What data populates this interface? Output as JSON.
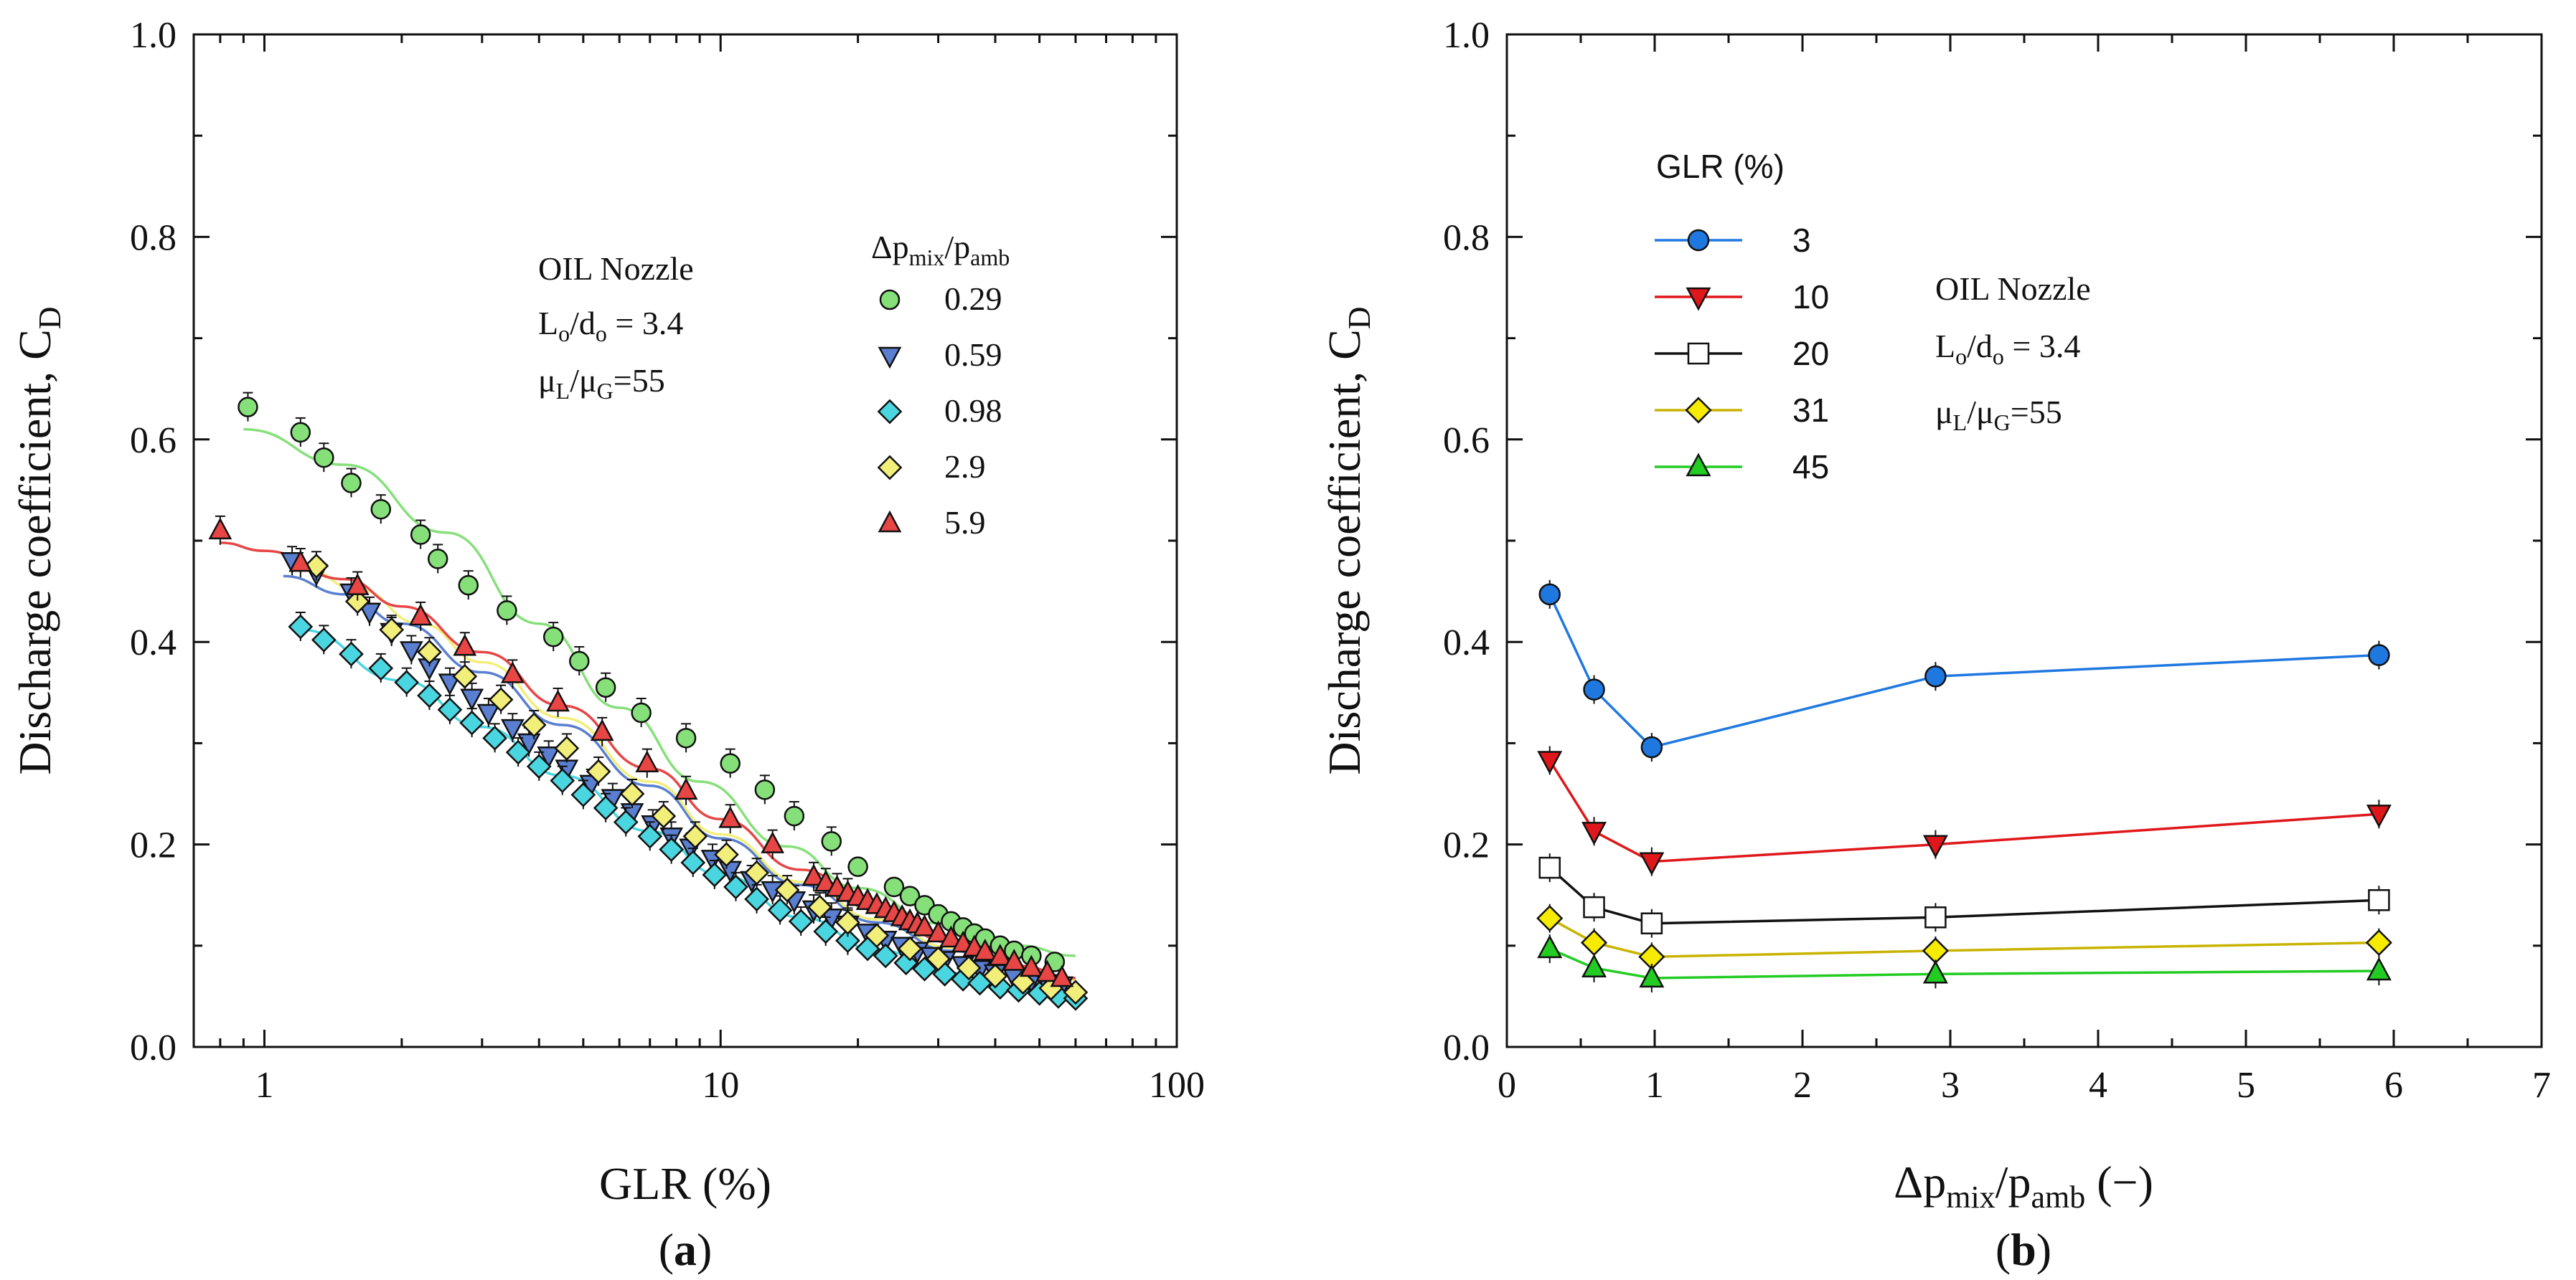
{
  "chart_data": [
    {
      "id": "a",
      "type": "scatter",
      "x_scale": "log",
      "panel_label": "a",
      "xlabel": "GLR (%)",
      "ylabel": "Discharge coefficient, C",
      "ylabel_sub": "D",
      "xlim": [
        0.7,
        100
      ],
      "ylim": [
        0,
        1.0
      ],
      "xticks": [
        1,
        10,
        100
      ],
      "xtick_labels": [
        "1",
        "10",
        "100"
      ],
      "yticks": [
        0,
        0.2,
        0.4,
        0.6,
        0.8,
        1.0
      ],
      "ytick_labels": [
        "0.0",
        "0.2",
        "0.4",
        "0.6",
        "0.8",
        "1.0"
      ],
      "annotation": {
        "line1": "OIL Nozzle",
        "line2_main": "L",
        "line2_sub": "o",
        "line2_mid": "/d",
        "line2_sub2": "o",
        "line2_tail": " = 3.4",
        "line3_main": "μ",
        "line3_sub": "L",
        "line3_mid": "/μ",
        "line3_sub2": "G",
        "line3_tail": "=55"
      },
      "legend": {
        "title_main": "Δp",
        "title_sub": "mix",
        "title_mid": "/p",
        "title_sub2": "amb",
        "placement": "top-right"
      },
      "series": [
        {
          "name": "0.29",
          "color": "#86e07a",
          "marker": "circle",
          "x": [
            0.92,
            1.2,
            1.35,
            1.55,
            1.8,
            2.2,
            2.4,
            2.8,
            3.4,
            4.3,
            4.9,
            5.6,
            6.7,
            8.4,
            10.5,
            12.5,
            14.5,
            17.5,
            20,
            24,
            26,
            28,
            30,
            32,
            34,
            36,
            38,
            41,
            44,
            48,
            54
          ],
          "y": [
            0.632,
            0.607,
            0.582,
            0.557,
            0.531,
            0.506,
            0.482,
            0.456,
            0.431,
            0.405,
            0.381,
            0.355,
            0.33,
            0.305,
            0.28,
            0.254,
            0.228,
            0.203,
            0.178,
            0.158,
            0.149,
            0.14,
            0.131,
            0.124,
            0.118,
            0.112,
            0.107,
            0.1,
            0.095,
            0.09,
            0.084
          ],
          "fit_x": [
            0.9,
            1.5,
            2.5,
            4,
            6,
            9,
            14,
            20,
            30,
            45,
            60
          ],
          "fit_y": [
            0.61,
            0.575,
            0.508,
            0.418,
            0.335,
            0.262,
            0.198,
            0.157,
            0.122,
            0.1,
            0.09
          ]
        },
        {
          "name": "0.59",
          "color": "#5a7fd1",
          "marker": "triangle-down",
          "x": [
            1.15,
            1.3,
            1.55,
            1.7,
            1.9,
            2.1,
            2.3,
            2.55,
            2.85,
            3.1,
            3.5,
            3.8,
            4.2,
            4.6,
            5.2,
            5.8,
            6.4,
            7.1,
            7.8,
            8.6,
            9.6,
            10.5,
            11.7,
            13,
            14.5,
            16,
            17.5,
            19,
            21,
            23,
            25,
            27,
            29,
            31,
            34,
            37,
            40,
            44,
            48,
            52,
            56
          ],
          "y": [
            0.48,
            0.468,
            0.449,
            0.43,
            0.41,
            0.392,
            0.375,
            0.36,
            0.345,
            0.33,
            0.315,
            0.301,
            0.288,
            0.275,
            0.26,
            0.246,
            0.232,
            0.22,
            0.208,
            0.197,
            0.186,
            0.175,
            0.165,
            0.155,
            0.145,
            0.136,
            0.128,
            0.121,
            0.113,
            0.106,
            0.1,
            0.095,
            0.09,
            0.086,
            0.081,
            0.077,
            0.073,
            0.069,
            0.066,
            0.063,
            0.061
          ],
          "fit_x": [
            1.1,
            1.5,
            2,
            3,
            4.5,
            7,
            10,
            15,
            22,
            32,
            45,
            60
          ],
          "fit_y": [
            0.465,
            0.447,
            0.418,
            0.37,
            0.318,
            0.258,
            0.206,
            0.16,
            0.123,
            0.095,
            0.076,
            0.066
          ]
        },
        {
          "name": "0.98",
          "color": "#4ad6e0",
          "marker": "diamond",
          "x": [
            1.2,
            1.35,
            1.55,
            1.8,
            2.05,
            2.3,
            2.55,
            2.85,
            3.2,
            3.6,
            4,
            4.5,
            5,
            5.6,
            6.2,
            7,
            7.8,
            8.7,
            9.7,
            10.8,
            12,
            13.5,
            15,
            17,
            19,
            21,
            23,
            25.5,
            28,
            31,
            34,
            37,
            41,
            45,
            50,
            55,
            60
          ],
          "y": [
            0.415,
            0.402,
            0.388,
            0.374,
            0.36,
            0.347,
            0.333,
            0.32,
            0.305,
            0.291,
            0.277,
            0.263,
            0.249,
            0.236,
            0.222,
            0.208,
            0.195,
            0.182,
            0.17,
            0.158,
            0.146,
            0.135,
            0.124,
            0.114,
            0.105,
            0.097,
            0.09,
            0.083,
            0.077,
            0.072,
            0.067,
            0.063,
            0.059,
            0.056,
            0.053,
            0.05,
            0.048
          ],
          "fit_x": [
            1.2,
            2,
            3,
            4.5,
            7,
            10,
            15,
            22,
            32,
            45,
            60
          ],
          "fit_y": [
            0.412,
            0.362,
            0.316,
            0.268,
            0.213,
            0.17,
            0.128,
            0.096,
            0.073,
            0.058,
            0.05
          ]
        },
        {
          "name": "2.9",
          "color": "#f2ee7a",
          "marker": "diamond",
          "x": [
            1.3,
            1.6,
            1.9,
            2.3,
            2.75,
            3.3,
            3.9,
            4.6,
            5.4,
            6.4,
            7.5,
            8.8,
            10.3,
            12,
            14,
            16.5,
            19,
            22,
            26,
            30,
            35,
            40,
            46,
            53,
            60
          ],
          "y": [
            0.475,
            0.44,
            0.412,
            0.39,
            0.366,
            0.343,
            0.318,
            0.295,
            0.272,
            0.25,
            0.228,
            0.208,
            0.19,
            0.172,
            0.155,
            0.138,
            0.123,
            0.11,
            0.097,
            0.087,
            0.078,
            0.07,
            0.064,
            0.058,
            0.054
          ],
          "fit_x": [
            1.2,
            1.6,
            2.2,
            3,
            4.5,
            7,
            10,
            15,
            22,
            32,
            45,
            60
          ],
          "fit_y": [
            0.475,
            0.452,
            0.418,
            0.38,
            0.325,
            0.262,
            0.21,
            0.163,
            0.126,
            0.098,
            0.078,
            0.066
          ]
        },
        {
          "name": "5.9",
          "color": "#e84545",
          "marker": "triangle-up",
          "x": [
            0.8,
            1.2,
            1.6,
            2.2,
            2.75,
            3.5,
            4.4,
            5.5,
            6.9,
            8.4,
            10.5,
            13,
            16,
            17,
            18,
            19,
            20,
            21,
            22,
            23,
            24,
            25,
            26,
            27,
            28,
            30,
            32,
            34,
            36,
            38,
            41,
            44,
            48,
            52,
            56
          ],
          "y": [
            0.51,
            0.478,
            0.455,
            0.425,
            0.395,
            0.368,
            0.34,
            0.311,
            0.28,
            0.253,
            0.225,
            0.2,
            0.168,
            0.162,
            0.157,
            0.152,
            0.148,
            0.144,
            0.14,
            0.136,
            0.132,
            0.128,
            0.124,
            0.121,
            0.118,
            0.112,
            0.107,
            0.102,
            0.098,
            0.094,
            0.089,
            0.084,
            0.078,
            0.073,
            0.068
          ],
          "fit_x": [
            0.8,
            1,
            1.5,
            2,
            3,
            4.5,
            7,
            10,
            15,
            22,
            32,
            45,
            60
          ],
          "fit_y": [
            0.498,
            0.49,
            0.462,
            0.435,
            0.39,
            0.337,
            0.275,
            0.225,
            0.175,
            0.135,
            0.103,
            0.08,
            0.068
          ]
        }
      ]
    },
    {
      "id": "b",
      "type": "line",
      "panel_label": "b",
      "xlabel_main": "Δp",
      "xlabel_sub": "mix",
      "xlabel_mid": "/p",
      "xlabel_sub2": "amb",
      "xlabel_tail": " (−)",
      "ylabel": "Discharge coefficient, C",
      "ylabel_sub": "D",
      "xlim": [
        0,
        7
      ],
      "ylim": [
        0,
        1.0
      ],
      "xticks": [
        0,
        1,
        2,
        3,
        4,
        5,
        6,
        7
      ],
      "xtick_labels": [
        "0",
        "1",
        "2",
        "3",
        "4",
        "5",
        "6",
        "7"
      ],
      "yticks": [
        0,
        0.2,
        0.4,
        0.6,
        0.8,
        1.0
      ],
      "ytick_labels": [
        "0.0",
        "0.2",
        "0.4",
        "0.6",
        "0.8",
        "1.0"
      ],
      "annotation": {
        "line1": "OIL Nozzle",
        "line2_main": "L",
        "line2_sub": "o",
        "line2_mid": "/d",
        "line2_sub2": "o",
        "line2_tail": " = 3.4",
        "line3_main": "μ",
        "line3_sub": "L",
        "line3_mid": "/μ",
        "line3_sub2": "G",
        "line3_tail": "=55"
      },
      "legend": {
        "title": "GLR (%)",
        "placement": "top-left"
      },
      "x": [
        0.29,
        0.59,
        0.98,
        2.9,
        5.9
      ],
      "series": [
        {
          "name": "3",
          "color": "#1f78e0",
          "line_color": "#1f78e0",
          "marker": "circle",
          "values": [
            0.447,
            0.353,
            0.296,
            0.366,
            0.387
          ]
        },
        {
          "name": "10",
          "color": "#e0171a",
          "line_color": "#e0171a",
          "marker": "triangle-down",
          "values": [
            0.283,
            0.213,
            0.183,
            0.2,
            0.23
          ]
        },
        {
          "name": "20",
          "color": "#ffffff",
          "line_color": "#111111",
          "marker": "square",
          "values": [
            0.177,
            0.138,
            0.122,
            0.128,
            0.145
          ]
        },
        {
          "name": "31",
          "color": "#f7ec00",
          "line_color": "#c8b400",
          "marker": "diamond",
          "values": [
            0.127,
            0.103,
            0.089,
            0.095,
            0.103
          ]
        },
        {
          "name": "45",
          "color": "#22cc22",
          "line_color": "#22cc22",
          "marker": "triangle-up",
          "values": [
            0.097,
            0.078,
            0.068,
            0.072,
            0.075
          ]
        }
      ]
    }
  ]
}
